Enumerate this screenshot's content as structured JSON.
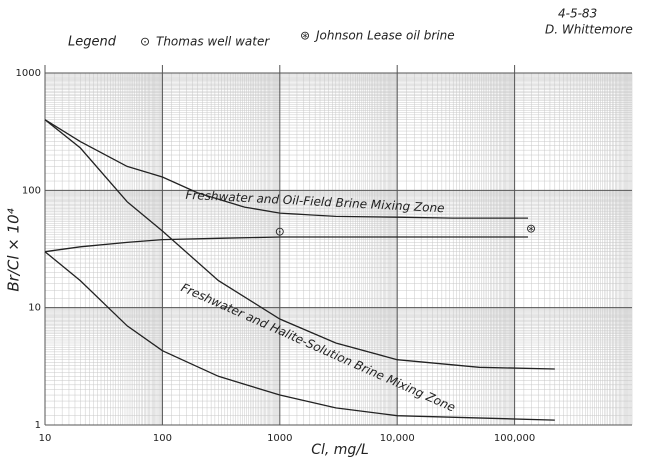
{
  "chart_data": {
    "type": "line",
    "date": "4-5-83",
    "author": "D. Whittemore",
    "legend_title": "Legend",
    "xlabel": "Cl, mg/L",
    "ylabel": "Br/Cl × 10⁴",
    "xscale": "log",
    "yscale": "log",
    "xlim": [
      10,
      1000000
    ],
    "ylim": [
      1,
      1000
    ],
    "xticks": [
      10,
      100,
      1000,
      {
        "value": 10000,
        "label": "10,000"
      },
      {
        "value": 100000,
        "label": "100,000"
      }
    ],
    "yticks": [
      1,
      10,
      100,
      1000
    ],
    "grid": true,
    "annotations": [
      "Freshwater and Oil-Field Brine Mixing Zone",
      "Freshwater and Halite-Solution Brine Mixing Zone"
    ],
    "series": [
      {
        "color": "#222222",
        "x": [
          10,
          20,
          50,
          100,
          200,
          500,
          1000,
          3000,
          10000,
          30000,
          130000
        ],
        "values": [
          400,
          260,
          160,
          130,
          95,
          72,
          64,
          60,
          59,
          58,
          58
        ]
      },
      {
        "color": "#222222",
        "x": [
          10,
          20,
          50,
          100,
          300,
          1000,
          10000,
          130000
        ],
        "values": [
          30,
          33,
          36,
          38,
          39,
          40,
          40,
          40
        ]
      },
      {
        "color": "#222222",
        "x": [
          10,
          20,
          50,
          100,
          300,
          1000,
          3000,
          10000,
          50000,
          220000
        ],
        "values": [
          400,
          230,
          80,
          45,
          17,
          8,
          5,
          3.6,
          3.1,
          3
        ]
      },
      {
        "color": "#222222",
        "x": [
          10,
          20,
          50,
          100,
          300,
          1000,
          3000,
          10000,
          220000
        ],
        "values": [
          30,
          17,
          7,
          4.3,
          2.6,
          1.8,
          1.4,
          1.2,
          1.1
        ]
      }
    ],
    "points": [
      {
        "label": "Thomas well water",
        "symbol": "⊙",
        "x": 1000,
        "y": 44
      },
      {
        "label": "Johnson Lease oil brine",
        "symbol": "⊛",
        "x": 138000,
        "y": 47
      }
    ]
  }
}
